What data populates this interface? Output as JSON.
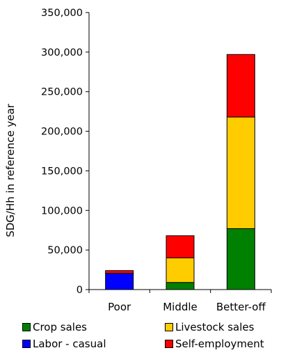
{
  "chart_data": {
    "type": "bar",
    "stacked": true,
    "categories": [
      "Poor",
      "Middle",
      "Better-off"
    ],
    "series": [
      {
        "name": "Crop sales",
        "color": "#008000",
        "values": [
          0,
          9000,
          77000
        ]
      },
      {
        "name": "Livestock sales",
        "color": "#FFCC00",
        "values": [
          0,
          31000,
          141000
        ]
      },
      {
        "name": "Labor - casual",
        "color": "#0000FF",
        "values": [
          20500,
          0,
          0
        ]
      },
      {
        "name": "Self-employment",
        "color": "#FF0000",
        "values": [
          3500,
          28000,
          79000
        ]
      }
    ],
    "xlabel": "",
    "ylabel": "SDG/Hh in reference year",
    "ylim": [
      0,
      350000
    ],
    "yticks": [
      0,
      50000,
      100000,
      150000,
      200000,
      250000,
      300000,
      350000
    ],
    "ytick_labels": [
      "0",
      "50,000",
      "100,000",
      "150,000",
      "200,000",
      "250,000",
      "300,000",
      "350,000"
    ],
    "grid": false,
    "legend_position": "bottom",
    "legend_order": [
      "Crop sales",
      "Livestock sales",
      "Labor - casual",
      "Self-employment"
    ]
  }
}
